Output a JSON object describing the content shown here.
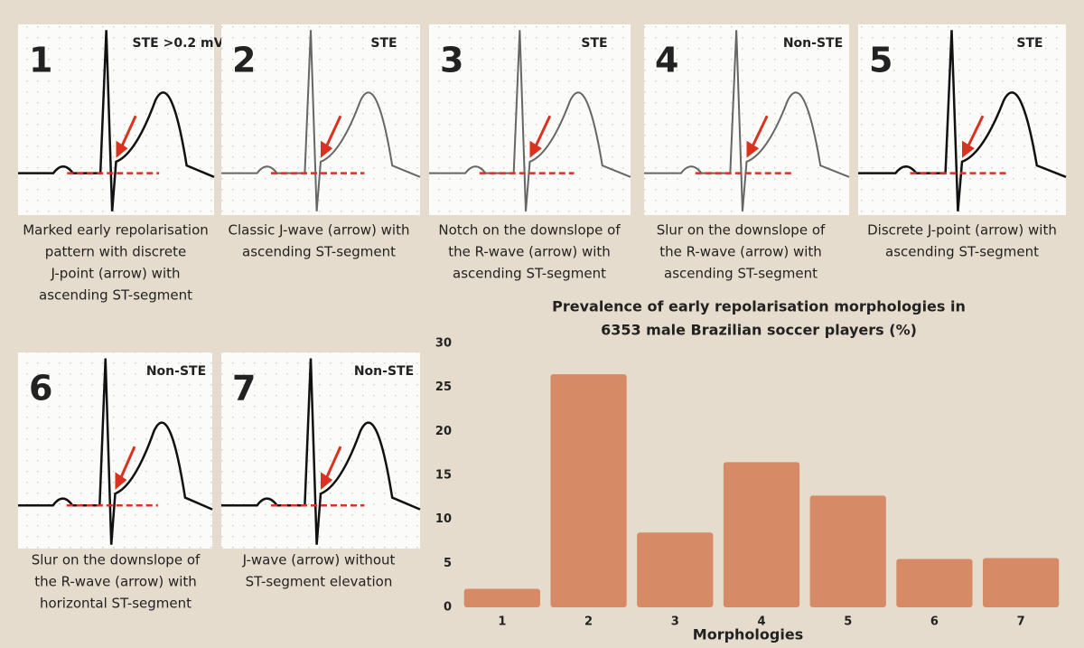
{
  "panels": [
    {
      "number": "1",
      "tag": "STE >0.2 mV",
      "caption": [
        "Marked early repolarisation",
        "pattern with discrete",
        "J-point (arrow) with",
        "ascending ST-segment"
      ]
    },
    {
      "number": "2",
      "tag": "STE",
      "caption": [
        "Classic J-wave (arrow) with",
        "ascending ST-segment"
      ]
    },
    {
      "number": "3",
      "tag": "STE",
      "caption": [
        "Notch on the downslope of",
        "the R-wave (arrow) with",
        "ascending ST-segment"
      ]
    },
    {
      "number": "4",
      "tag": "Non-STE",
      "caption": [
        "Slur on the downslope of",
        "the R-wave (arrow) with",
        "ascending ST-segment"
      ]
    },
    {
      "number": "5",
      "tag": "STE",
      "caption": [
        "Discrete J-point (arrow) with",
        "ascending ST-segment"
      ]
    },
    {
      "number": "6",
      "tag": "Non-STE",
      "caption": [
        "Slur on the downslope of",
        "the R-wave (arrow) with",
        "horizontal ST-segment"
      ]
    },
    {
      "number": "7",
      "tag": "Non-STE",
      "caption": [
        "J-wave (arrow) without",
        "ST-segment elevation"
      ]
    }
  ],
  "chart_data": {
    "type": "bar",
    "title": [
      "Prevalence of early repolarisation morphologies in",
      "6353 male Brazilian soccer players (%)"
    ],
    "x_label": "Morphologies",
    "categories": [
      "1",
      "2",
      "3",
      "4",
      "5",
      "6",
      "7"
    ],
    "values": [
      2.1,
      26.5,
      8.5,
      16.5,
      12.7,
      5.5,
      5.6
    ],
    "color": "#d68a65",
    "ylim": [
      0,
      30
    ],
    "yticks": [
      0,
      5,
      10,
      15,
      20,
      25,
      30
    ],
    "grid": false
  }
}
